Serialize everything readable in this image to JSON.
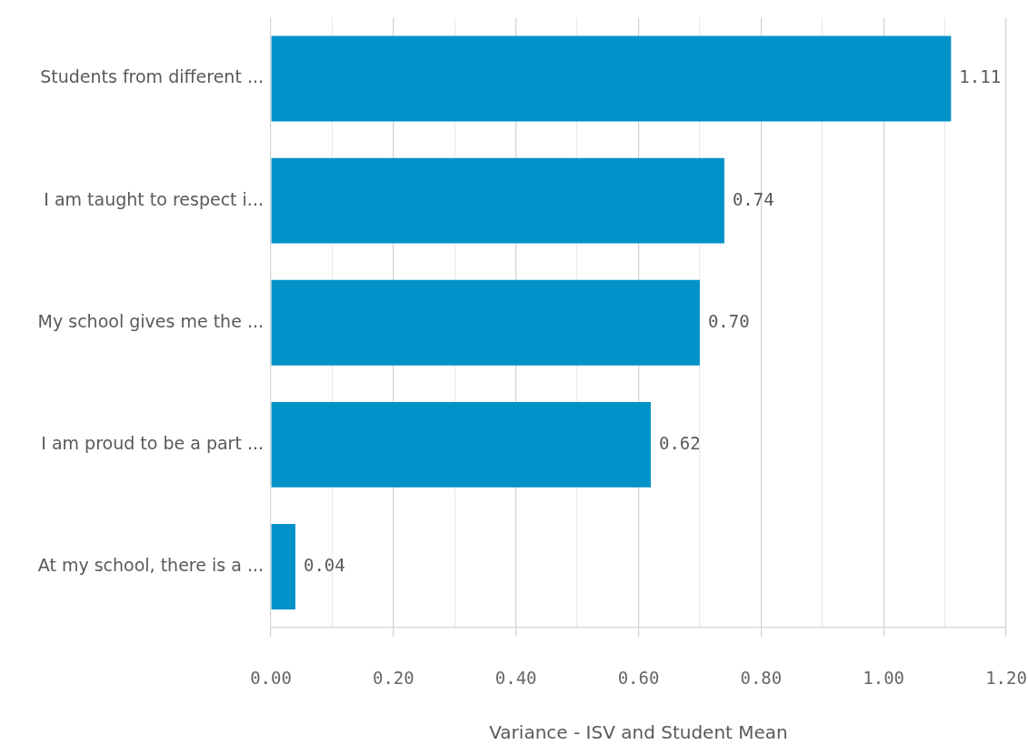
{
  "chart_data": {
    "type": "bar",
    "orientation": "horizontal",
    "categories": [
      "Students from different ...",
      "I am taught to respect i...",
      "My school gives me the ...",
      "I am proud to be a part ...",
      "At my school, there is a ..."
    ],
    "values": [
      1.11,
      0.74,
      0.7,
      0.62,
      0.04
    ],
    "color": "#0092c8",
    "value_labels": [
      "1.11",
      "0.74",
      "0.70",
      "0.62",
      "0.04"
    ],
    "xlabel": "Variance - ISV and Student Mean",
    "xlim": [
      0,
      1.2
    ],
    "xticks": [
      {
        "value": 0,
        "label": "0.00"
      },
      {
        "value": 0.1,
        "label": null
      },
      {
        "value": 0.2,
        "label": "0.20"
      },
      {
        "value": 0.3,
        "label": null
      },
      {
        "value": 0.4,
        "label": "0.40"
      },
      {
        "value": 0.5,
        "label": null
      },
      {
        "value": 0.6,
        "label": "0.60"
      },
      {
        "value": 0.7,
        "label": null
      },
      {
        "value": 0.8,
        "label": "0.80"
      },
      {
        "value": 0.9,
        "label": null
      },
      {
        "value": 1.0,
        "label": "1.00"
      },
      {
        "value": 1.1,
        "label": null
      },
      {
        "value": 1.2,
        "label": "1.20"
      }
    ],
    "grid": "x"
  }
}
